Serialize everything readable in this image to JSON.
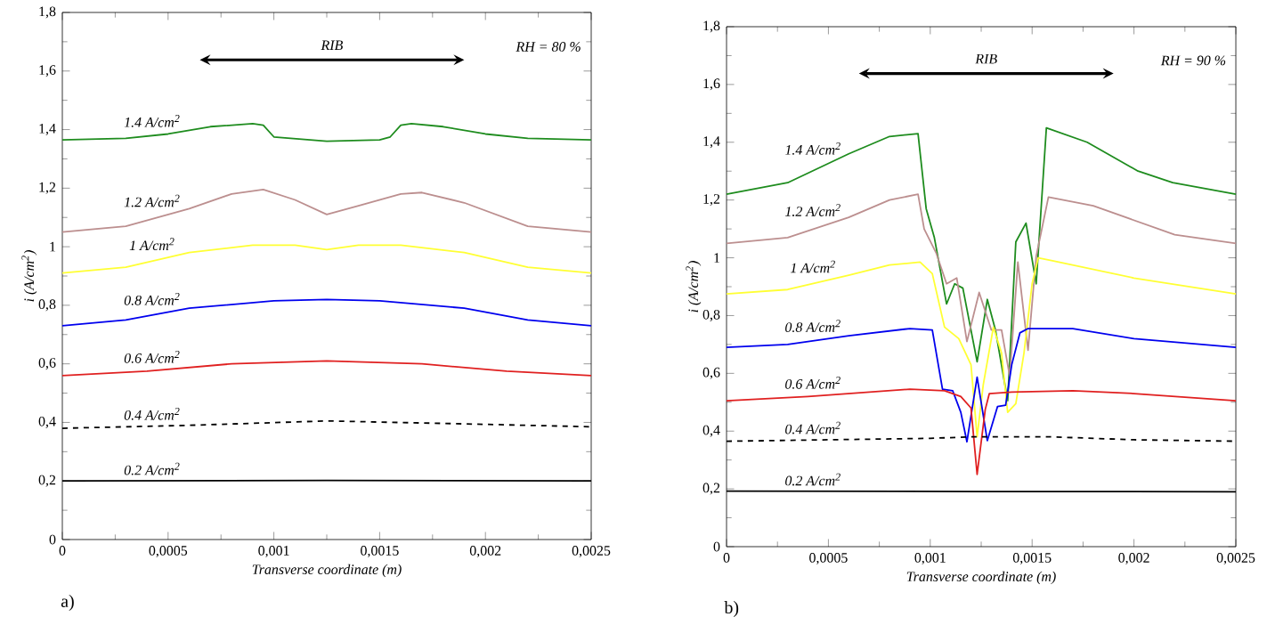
{
  "chart_data": [
    {
      "type": "line",
      "xlabel": "Transverse coordinate (m)",
      "ylabel": "i (A/cm$^{2}$)",
      "annotations": [
        "RIB",
        "RH = 80 %",
        "a)"
      ],
      "xlim": [
        0,
        0.0025
      ],
      "ylim": [
        0,
        1.8
      ],
      "xticks": [
        0,
        {
          "value": 0.0005,
          "label": "0,0005"
        },
        {
          "value": 0.001,
          "label": "0,001"
        },
        {
          "value": 0.0015,
          "label": "0,0015"
        },
        {
          "value": 0.002,
          "label": "0,002"
        },
        {
          "value": 0.0025,
          "label": "0,0025"
        }
      ],
      "yticks": [
        0,
        {
          "value": 0.2,
          "label": "0,2"
        },
        {
          "value": 0.4,
          "label": "0,4"
        },
        {
          "value": 0.6,
          "label": "0,6"
        },
        {
          "value": 0.8,
          "label": "0,8"
        },
        1,
        {
          "value": 1.2,
          "label": "1,2"
        },
        {
          "value": 1.4,
          "label": "1,4"
        },
        {
          "value": 1.6,
          "label": "1,6"
        },
        {
          "value": 1.8,
          "label": "1,8"
        }
      ],
      "series": [
        {
          "name": "1.4 A/cm$^{2}$",
          "color": "#1e8c1e",
          "x": [
            0,
            0.0003,
            0.0005,
            0.0007,
            0.0009,
            0.00095,
            0.001,
            0.00125,
            0.0015,
            0.00155,
            0.0016,
            0.00165,
            0.0018,
            0.002,
            0.0022,
            0.0025
          ],
          "values": [
            1.365,
            1.37,
            1.385,
            1.41,
            1.42,
            1.415,
            1.375,
            1.36,
            1.365,
            1.375,
            1.415,
            1.42,
            1.41,
            1.385,
            1.37,
            1.365
          ]
        },
        {
          "name": "1.2 A/cm$^{2}$",
          "color": "#bc8f8f",
          "x": [
            0,
            0.0003,
            0.0006,
            0.0008,
            0.00095,
            0.0011,
            0.00125,
            0.0014,
            0.0016,
            0.0017,
            0.0019,
            0.0022,
            0.0025
          ],
          "values": [
            1.05,
            1.07,
            1.13,
            1.18,
            1.195,
            1.16,
            1.11,
            1.14,
            1.18,
            1.185,
            1.15,
            1.07,
            1.05
          ]
        },
        {
          "name": "1 A/cm$^{2}$",
          "color": "#ffff33",
          "x": [
            0,
            0.0003,
            0.0006,
            0.0009,
            0.0011,
            0.00125,
            0.0014,
            0.0016,
            0.0019,
            0.0022,
            0.0025
          ],
          "values": [
            0.91,
            0.93,
            0.98,
            1.005,
            1.005,
            0.99,
            1.005,
            1.005,
            0.98,
            0.93,
            0.91
          ]
        },
        {
          "name": "0.8 A/cm$^{2}$",
          "color": "#0000ee",
          "x": [
            0,
            0.0003,
            0.0006,
            0.001,
            0.00125,
            0.0015,
            0.0019,
            0.0022,
            0.0025
          ],
          "values": [
            0.73,
            0.75,
            0.79,
            0.815,
            0.82,
            0.815,
            0.79,
            0.75,
            0.73
          ]
        },
        {
          "name": "0.6 A/cm$^{2}$",
          "color": "#e02020",
          "x": [
            0,
            0.0004,
            0.0008,
            0.00125,
            0.0017,
            0.0021,
            0.0025
          ],
          "values": [
            0.56,
            0.575,
            0.6,
            0.61,
            0.6,
            0.575,
            0.56
          ]
        },
        {
          "name": "0.4 A/cm$^{2}$",
          "color": "#000000",
          "line_style": "dashed",
          "x": [
            0,
            0.0006,
            0.00125,
            0.0019,
            0.0025
          ],
          "values": [
            0.38,
            0.39,
            0.405,
            0.395,
            0.385
          ]
        },
        {
          "name": "0.2 A/cm$^{2}$",
          "color": "#000000",
          "x": [
            0,
            0.00125,
            0.0025
          ],
          "values": [
            0.2,
            0.202,
            0.2
          ]
        }
      ]
    },
    {
      "type": "line",
      "xlabel": "Transverse coordinate (m)",
      "ylabel": "i (A/cm$^{2}$)",
      "annotations": [
        "RIB",
        "RH = 90 %",
        "b)"
      ],
      "xlim": [
        0,
        0.0025
      ],
      "ylim": [
        0,
        1.8
      ],
      "xticks": [
        0,
        {
          "value": 0.0005,
          "label": "0,0005"
        },
        {
          "value": 0.001,
          "label": "0,001"
        },
        {
          "value": 0.0015,
          "label": "0,0015"
        },
        {
          "value": 0.002,
          "label": "0,002"
        },
        {
          "value": 0.0025,
          "label": "0,0025"
        }
      ],
      "yticks": [
        0,
        {
          "value": 0.2,
          "label": "0,2"
        },
        {
          "value": 0.4,
          "label": "0,4"
        },
        {
          "value": 0.6,
          "label": "0,6"
        },
        {
          "value": 0.8,
          "label": "0,8"
        },
        1,
        {
          "value": 1.2,
          "label": "1,2"
        },
        {
          "value": 1.4,
          "label": "1,4"
        },
        {
          "value": 1.6,
          "label": "1,6"
        },
        {
          "value": 1.8,
          "label": "1,8"
        }
      ],
      "series": [
        {
          "name": "1.4 A/cm$^{2}$",
          "color": "#1e8c1e",
          "x": [
            0,
            0.0003,
            0.0006,
            0.0008,
            0.00094,
            0.00098,
            0.00102,
            0.00108,
            0.00112,
            0.00116,
            0.00123,
            0.00128,
            0.00132,
            0.00138,
            0.00142,
            0.00147,
            0.00152,
            0.00157,
            0.00177,
            0.00202,
            0.00219,
            0.0025
          ],
          "values": [
            1.22,
            1.26,
            1.36,
            1.42,
            1.43,
            1.17,
            1.07,
            0.84,
            0.91,
            0.895,
            0.64,
            0.856,
            0.75,
            0.505,
            1.055,
            1.12,
            0.91,
            1.45,
            1.4,
            1.3,
            1.26,
            1.22
          ]
        },
        {
          "name": "1.2 A/cm$^{2}$",
          "color": "#bc8f8f",
          "x": [
            0,
            0.0003,
            0.0006,
            0.0008,
            0.00094,
            0.00097,
            0.00103,
            0.00108,
            0.00113,
            0.00118,
            0.00124,
            0.0013,
            0.00135,
            0.00139,
            0.00143,
            0.00148,
            0.00152,
            0.00158,
            0.0018,
            0.0022,
            0.0025
          ],
          "values": [
            1.05,
            1.07,
            1.14,
            1.2,
            1.22,
            1.1,
            1.015,
            0.91,
            0.93,
            0.71,
            0.88,
            0.75,
            0.75,
            0.59,
            0.985,
            0.68,
            1.005,
            1.21,
            1.18,
            1.08,
            1.05
          ]
        },
        {
          "name": "1 A/cm$^{2}$",
          "color": "#ffff33",
          "x": [
            0,
            0.0003,
            0.0006,
            0.0008,
            0.00095,
            0.00101,
            0.00107,
            0.00114,
            0.0012,
            0.00123,
            0.00126,
            0.00131,
            0.00135,
            0.00138,
            0.00142,
            0.00146,
            0.0015,
            0.00153,
            0.0016,
            0.002,
            0.0025
          ],
          "values": [
            0.875,
            0.89,
            0.94,
            0.975,
            0.985,
            0.945,
            0.76,
            0.72,
            0.63,
            0.38,
            0.56,
            0.76,
            0.67,
            0.465,
            0.495,
            0.67,
            0.91,
            1.0,
            0.99,
            0.93,
            0.875
          ]
        },
        {
          "name": "0.8 A/cm$^{2}$",
          "color": "#0000ee",
          "x": [
            0,
            0.0003,
            0.0006,
            0.0009,
            0.00101,
            0.00106,
            0.00111,
            0.00115,
            0.00118,
            0.00123,
            0.00128,
            0.00133,
            0.00137,
            0.0014,
            0.00144,
            0.00148,
            0.0017,
            0.002,
            0.0025
          ],
          "values": [
            0.69,
            0.7,
            0.73,
            0.755,
            0.75,
            0.545,
            0.54,
            0.465,
            0.363,
            0.587,
            0.367,
            0.485,
            0.49,
            0.63,
            0.74,
            0.755,
            0.755,
            0.72,
            0.69
          ]
        },
        {
          "name": "0.6 A/cm$^{2}$",
          "color": "#e02020",
          "x": [
            0,
            0.0004,
            0.0009,
            0.00107,
            0.00115,
            0.0012,
            0.00123,
            0.00127,
            0.00129,
            0.0014,
            0.0017,
            0.002,
            0.0025
          ],
          "values": [
            0.505,
            0.52,
            0.545,
            0.54,
            0.52,
            0.48,
            0.25,
            0.475,
            0.53,
            0.535,
            0.54,
            0.53,
            0.505
          ]
        },
        {
          "name": "0.4 A/cm$^{2}$",
          "color": "#000000",
          "line_style": "dashed",
          "x": [
            0,
            0.001,
            0.0012,
            0.0016,
            0.002,
            0.0025
          ],
          "values": [
            0.365,
            0.375,
            0.38,
            0.38,
            0.37,
            0.365
          ]
        },
        {
          "name": "0.2 A/cm$^{2}$",
          "color": "#000000",
          "x": [
            0,
            0.00125,
            0.0025
          ],
          "values": [
            0.192,
            0.191,
            0.19
          ]
        }
      ]
    }
  ]
}
